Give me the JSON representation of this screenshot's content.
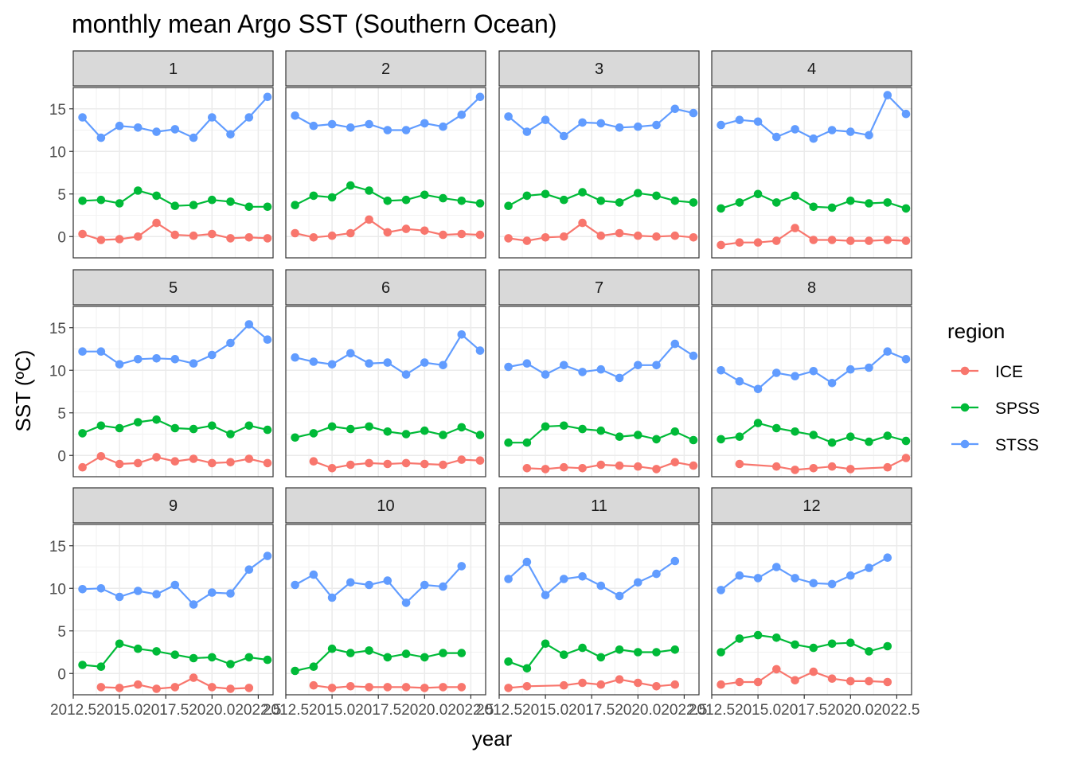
{
  "chart_data": {
    "type": "line",
    "title": "monthly mean Argo SST (Southern Ocean)",
    "xlabel": "year",
    "ylabel": "SST (ºC)",
    "x": [
      2013,
      2014,
      2015,
      2016,
      2017,
      2018,
      2019,
      2020,
      2021,
      2022,
      2023
    ],
    "xlim": [
      2012.5,
      2023.3
    ],
    "ylim": [
      -2.5,
      17.5
    ],
    "x_ticks": [
      2012.5,
      2015.0,
      2017.5,
      2020.0,
      2022.5
    ],
    "x_tick_labels": [
      "2012.5",
      "2015.0",
      "2017.5",
      "2020.0",
      "2022.5"
    ],
    "y_ticks": [
      0,
      5,
      10,
      15
    ],
    "y_tick_labels": [
      "0",
      "5",
      "10",
      "15"
    ],
    "grid": true,
    "legend": {
      "title": "region",
      "position": "right",
      "entries": [
        {
          "name": "ICE",
          "color": "#F8766D"
        },
        {
          "name": "SPSS",
          "color": "#00BA38"
        },
        {
          "name": "STSS",
          "color": "#619CFF"
        }
      ]
    },
    "panels": [
      {
        "label": "1",
        "series": [
          {
            "name": "ICE",
            "values": [
              0.3,
              -0.4,
              -0.3,
              0.0,
              1.6,
              0.2,
              0.1,
              0.3,
              -0.2,
              -0.1,
              -0.2
            ]
          },
          {
            "name": "SPSS",
            "values": [
              4.2,
              4.3,
              3.9,
              5.4,
              4.8,
              3.6,
              3.7,
              4.3,
              4.1,
              3.5,
              3.5
            ]
          },
          {
            "name": "STSS",
            "values": [
              14.0,
              11.6,
              13.0,
              12.8,
              12.3,
              12.6,
              11.6,
              14.0,
              12.0,
              14.0,
              16.4
            ]
          }
        ]
      },
      {
        "label": "2",
        "series": [
          {
            "name": "ICE",
            "values": [
              0.4,
              -0.1,
              0.1,
              0.4,
              2.0,
              0.5,
              0.9,
              0.7,
              0.2,
              0.3,
              0.2
            ]
          },
          {
            "name": "SPSS",
            "values": [
              3.7,
              4.8,
              4.6,
              6.0,
              5.4,
              4.2,
              4.3,
              4.9,
              4.5,
              4.2,
              3.9
            ]
          },
          {
            "name": "STSS",
            "values": [
              14.2,
              13.0,
              13.2,
              12.8,
              13.2,
              12.5,
              12.5,
              13.3,
              12.9,
              14.3,
              16.4
            ]
          }
        ]
      },
      {
        "label": "3",
        "series": [
          {
            "name": "ICE",
            "values": [
              -0.2,
              -0.5,
              -0.1,
              0.0,
              1.6,
              0.1,
              0.4,
              0.1,
              0.0,
              0.1,
              -0.1
            ]
          },
          {
            "name": "SPSS",
            "values": [
              3.6,
              4.8,
              5.0,
              4.3,
              5.2,
              4.2,
              4.0,
              5.1,
              4.8,
              4.2,
              4.0
            ]
          },
          {
            "name": "STSS",
            "values": [
              14.1,
              12.3,
              13.7,
              11.8,
              13.4,
              13.3,
              12.8,
              12.9,
              13.1,
              15.0,
              14.5
            ]
          }
        ]
      },
      {
        "label": "4",
        "series": [
          {
            "name": "ICE",
            "values": [
              -1.0,
              -0.7,
              -0.7,
              -0.5,
              1.0,
              -0.4,
              -0.4,
              -0.5,
              -0.5,
              -0.4,
              -0.5
            ]
          },
          {
            "name": "SPSS",
            "values": [
              3.3,
              4.0,
              5.0,
              4.0,
              4.8,
              3.5,
              3.4,
              4.2,
              3.9,
              4.0,
              3.3
            ]
          },
          {
            "name": "STSS",
            "values": [
              13.1,
              13.7,
              13.5,
              11.7,
              12.6,
              11.5,
              12.5,
              12.3,
              11.9,
              16.6,
              14.4
            ]
          }
        ]
      },
      {
        "label": "5",
        "series": [
          {
            "name": "ICE",
            "values": [
              -1.4,
              -0.1,
              -1.0,
              -0.9,
              -0.2,
              -0.7,
              -0.4,
              -0.9,
              -0.8,
              -0.4,
              -0.9
            ]
          },
          {
            "name": "SPSS",
            "values": [
              2.6,
              3.5,
              3.2,
              3.9,
              4.2,
              3.2,
              3.1,
              3.5,
              2.5,
              3.5,
              3.0
            ]
          },
          {
            "name": "STSS",
            "values": [
              12.2,
              12.2,
              10.7,
              11.3,
              11.4,
              11.3,
              10.8,
              11.8,
              13.2,
              15.4,
              13.6
            ]
          }
        ]
      },
      {
        "label": "6",
        "series": [
          {
            "name": "ICE",
            "values": [
              null,
              -0.7,
              -1.5,
              -1.1,
              -0.9,
              -1.0,
              -0.9,
              -1.0,
              -1.1,
              -0.5,
              -0.6
            ]
          },
          {
            "name": "SPSS",
            "values": [
              2.1,
              2.6,
              3.4,
              3.1,
              3.4,
              2.8,
              2.5,
              2.9,
              2.4,
              3.3,
              2.4
            ]
          },
          {
            "name": "STSS",
            "values": [
              11.5,
              11.0,
              10.7,
              12.0,
              10.8,
              10.9,
              9.5,
              10.9,
              10.6,
              14.2,
              12.3
            ]
          }
        ]
      },
      {
        "label": "7",
        "series": [
          {
            "name": "ICE",
            "values": [
              null,
              -1.5,
              -1.6,
              -1.4,
              -1.5,
              -1.1,
              -1.2,
              -1.3,
              -1.6,
              -0.8,
              -1.2
            ]
          },
          {
            "name": "SPSS",
            "values": [
              1.5,
              1.5,
              3.4,
              3.5,
              3.1,
              2.9,
              2.2,
              2.4,
              1.9,
              2.8,
              1.8
            ]
          },
          {
            "name": "STSS",
            "values": [
              10.4,
              10.8,
              9.5,
              10.6,
              9.8,
              10.1,
              9.1,
              10.6,
              10.6,
              13.1,
              11.7
            ]
          }
        ]
      },
      {
        "label": "8",
        "series": [
          {
            "name": "ICE",
            "values": [
              null,
              -1.0,
              null,
              -1.3,
              -1.7,
              -1.5,
              -1.3,
              -1.6,
              null,
              -1.4,
              -0.3
            ]
          },
          {
            "name": "SPSS",
            "values": [
              1.9,
              2.2,
              3.8,
              3.2,
              2.8,
              2.4,
              1.5,
              2.2,
              1.6,
              2.3,
              1.7
            ]
          },
          {
            "name": "STSS",
            "values": [
              10.0,
              8.7,
              7.8,
              9.7,
              9.3,
              9.9,
              8.5,
              10.1,
              10.3,
              12.2,
              11.3
            ]
          }
        ]
      },
      {
        "label": "9",
        "series": [
          {
            "name": "ICE",
            "values": [
              null,
              -1.6,
              -1.7,
              -1.3,
              -1.8,
              -1.6,
              -0.5,
              -1.6,
              -1.8,
              -1.7,
              null
            ]
          },
          {
            "name": "SPSS",
            "values": [
              1.0,
              0.8,
              3.5,
              2.9,
              2.6,
              2.2,
              1.8,
              1.9,
              1.1,
              1.9,
              1.6
            ]
          },
          {
            "name": "STSS",
            "values": [
              9.9,
              10.0,
              9.0,
              9.7,
              9.3,
              10.4,
              8.1,
              9.5,
              9.4,
              12.2,
              13.8
            ]
          }
        ]
      },
      {
        "label": "10",
        "series": [
          {
            "name": "ICE",
            "values": [
              null,
              -1.4,
              -1.7,
              -1.5,
              -1.6,
              -1.6,
              -1.6,
              -1.7,
              -1.6,
              -1.6,
              null
            ]
          },
          {
            "name": "SPSS",
            "values": [
              0.3,
              0.8,
              2.9,
              2.4,
              2.7,
              1.9,
              2.3,
              1.9,
              2.4,
              2.4,
              null
            ]
          },
          {
            "name": "STSS",
            "values": [
              10.4,
              11.6,
              8.9,
              10.7,
              10.4,
              10.9,
              8.3,
              10.4,
              10.2,
              12.6,
              null
            ]
          }
        ]
      },
      {
        "label": "11",
        "series": [
          {
            "name": "ICE",
            "values": [
              -1.7,
              -1.5,
              null,
              -1.4,
              -1.1,
              -1.3,
              -0.7,
              -1.1,
              -1.5,
              -1.3,
              null
            ]
          },
          {
            "name": "SPSS",
            "values": [
              1.4,
              0.6,
              3.5,
              2.2,
              3.0,
              1.9,
              2.8,
              2.5,
              2.5,
              2.8,
              null
            ]
          },
          {
            "name": "STSS",
            "values": [
              11.1,
              13.1,
              9.2,
              11.1,
              11.4,
              10.3,
              9.1,
              10.7,
              11.7,
              13.2,
              null
            ]
          }
        ]
      },
      {
        "label": "12",
        "series": [
          {
            "name": "ICE",
            "values": [
              -1.3,
              -1.0,
              -1.0,
              0.5,
              -0.8,
              0.2,
              -0.6,
              -0.9,
              -0.9,
              -1.0,
              null
            ]
          },
          {
            "name": "SPSS",
            "values": [
              2.5,
              4.1,
              4.5,
              4.2,
              3.4,
              3.0,
              3.5,
              3.6,
              2.6,
              3.2,
              null
            ]
          },
          {
            "name": "STSS",
            "values": [
              9.8,
              11.5,
              11.2,
              12.5,
              11.2,
              10.6,
              10.5,
              11.5,
              12.4,
              13.6,
              null
            ]
          }
        ]
      }
    ]
  }
}
